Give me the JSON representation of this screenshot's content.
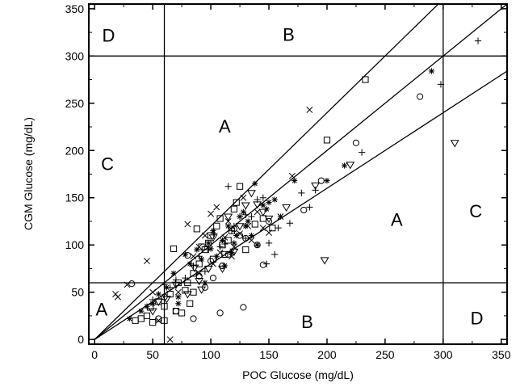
{
  "chart_data": {
    "type": "scatter",
    "title": "",
    "xlabel": "POC Glucose (mg/dL)",
    "ylabel": "CGM Glucose (mg/dL)",
    "xlim": [
      -5,
      355
    ],
    "ylim": [
      -5,
      355
    ],
    "x_ticks": [
      "0",
      "50",
      "100",
      "150",
      "200",
      "250",
      "300",
      "350"
    ],
    "y_ticks": [
      "0",
      "50",
      "100",
      "150",
      "200",
      "250",
      "300",
      "350"
    ],
    "grid": false,
    "legend": "none",
    "marker_color": "#000000",
    "reference_lines": {
      "vertical": [
        60,
        300
      ],
      "horizontal": [
        60,
        300
      ],
      "diagonals_from_origin_slopes": [
        1.2,
        1.0,
        0.8
      ]
    },
    "zone_labels": [
      {
        "text": "D",
        "x": 12,
        "y": 322
      },
      {
        "text": "B",
        "x": 167,
        "y": 323
      },
      {
        "text": "A",
        "x": 112,
        "y": 226
      },
      {
        "text": "C",
        "x": 11,
        "y": 186
      },
      {
        "text": "A",
        "x": 260,
        "y": 127
      },
      {
        "text": "C",
        "x": 328,
        "y": 136
      },
      {
        "text": "A",
        "x": 6,
        "y": 32
      },
      {
        "text": "B",
        "x": 183,
        "y": 19
      },
      {
        "text": "D",
        "x": 329,
        "y": 23
      }
    ],
    "series": [
      {
        "marker": "circle",
        "points": [
          [
            32,
            59
          ],
          [
            80,
            89
          ],
          [
            85,
            22
          ],
          [
            100,
            83
          ],
          [
            108,
            28
          ],
          [
            120,
            117
          ],
          [
            128,
            34
          ],
          [
            140,
            100
          ],
          [
            145,
            79
          ],
          [
            150,
            125
          ],
          [
            180,
            137
          ],
          [
            195,
            168
          ],
          [
            225,
            208
          ],
          [
            280,
            257
          ],
          [
            110,
            78
          ],
          [
            125,
            110
          ],
          [
            55,
            22
          ],
          [
            60,
            45
          ],
          [
            70,
            30
          ],
          [
            90,
            67
          ],
          [
            102,
            65
          ],
          [
            115,
            90
          ],
          [
            130,
            107
          ],
          [
            95,
            55
          ]
        ]
      },
      {
        "marker": "square",
        "points": [
          [
            35,
            20
          ],
          [
            40,
            22
          ],
          [
            45,
            25
          ],
          [
            48,
            34
          ],
          [
            50,
            18
          ],
          [
            55,
            40
          ],
          [
            60,
            35
          ],
          [
            65,
            48
          ],
          [
            70,
            30
          ],
          [
            75,
            28
          ],
          [
            78,
            52
          ],
          [
            80,
            60
          ],
          [
            82,
            38
          ],
          [
            85,
            70
          ],
          [
            88,
            117
          ],
          [
            90,
            80
          ],
          [
            92,
            98
          ],
          [
            95,
            95
          ],
          [
            98,
            102
          ],
          [
            100,
            110
          ],
          [
            102,
            85
          ],
          [
            105,
            120
          ],
          [
            108,
            128
          ],
          [
            110,
            100
          ],
          [
            112,
            90
          ],
          [
            115,
            105
          ],
          [
            118,
            115
          ],
          [
            120,
            138
          ],
          [
            122,
            145
          ],
          [
            125,
            162
          ],
          [
            130,
            95
          ],
          [
            138,
            122
          ],
          [
            145,
            128
          ],
          [
            153,
            118
          ],
          [
            200,
            211
          ],
          [
            233,
            275
          ],
          [
            68,
            96
          ],
          [
            72,
            60
          ],
          [
            85,
            50
          ],
          [
            60,
            20
          ]
        ]
      },
      {
        "marker": "plus",
        "points": [
          [
            50,
            42
          ],
          [
            60,
            58
          ],
          [
            65,
            55
          ],
          [
            70,
            63
          ],
          [
            78,
            65
          ],
          [
            85,
            78
          ],
          [
            90,
            88
          ],
          [
            95,
            72
          ],
          [
            98,
            95
          ],
          [
            103,
            112
          ],
          [
            108,
            98
          ],
          [
            112,
            101
          ],
          [
            118,
            115
          ],
          [
            120,
            120
          ],
          [
            125,
            130
          ],
          [
            130,
            132
          ],
          [
            135,
            130
          ],
          [
            140,
            148
          ],
          [
            145,
            150
          ],
          [
            148,
            80
          ],
          [
            150,
            102
          ],
          [
            155,
            90
          ],
          [
            158,
            118
          ],
          [
            168,
            123
          ],
          [
            178,
            155
          ],
          [
            185,
            140
          ],
          [
            190,
            158
          ],
          [
            230,
            198
          ],
          [
            298,
            270
          ],
          [
            330,
            316
          ],
          [
            115,
            162
          ],
          [
            130,
            107
          ]
        ]
      },
      {
        "marker": "cross",
        "points": [
          [
            18,
            48
          ],
          [
            20,
            45
          ],
          [
            28,
            58
          ],
          [
            45,
            83
          ],
          [
            50,
            50
          ],
          [
            55,
            20
          ],
          [
            65,
            0
          ],
          [
            72,
            50
          ],
          [
            80,
            122
          ],
          [
            85,
            88
          ],
          [
            90,
            70
          ],
          [
            95,
            110
          ],
          [
            100,
            133
          ],
          [
            102,
            80
          ],
          [
            105,
            140
          ],
          [
            108,
            92
          ],
          [
            112,
            108
          ],
          [
            115,
            125
          ],
          [
            118,
            88
          ],
          [
            120,
            98
          ],
          [
            125,
            112
          ],
          [
            128,
            150
          ],
          [
            132,
            120
          ],
          [
            135,
            105
          ],
          [
            140,
            135
          ],
          [
            145,
            118
          ],
          [
            150,
            113
          ],
          [
            160,
            130
          ],
          [
            170,
            173
          ],
          [
            185,
            243
          ],
          [
            90,
            98
          ]
        ]
      },
      {
        "marker": "star",
        "points": [
          [
            30,
            22
          ],
          [
            40,
            30
          ],
          [
            45,
            35
          ],
          [
            50,
            38
          ],
          [
            55,
            48
          ],
          [
            62,
            55
          ],
          [
            68,
            70
          ],
          [
            72,
            45
          ],
          [
            78,
            90
          ],
          [
            82,
            80
          ],
          [
            88,
            95
          ],
          [
            92,
            85
          ],
          [
            95,
            60
          ],
          [
            98,
            102
          ],
          [
            100,
            96
          ],
          [
            102,
            115
          ],
          [
            105,
            88
          ],
          [
            110,
            105
          ],
          [
            112,
            78
          ],
          [
            115,
            120
          ],
          [
            118,
            92
          ],
          [
            120,
            102
          ],
          [
            122,
            110
          ],
          [
            125,
            130
          ],
          [
            128,
            135
          ],
          [
            130,
            120
          ],
          [
            132,
            125
          ],
          [
            135,
            110
          ],
          [
            138,
            165
          ],
          [
            140,
            100
          ],
          [
            145,
            142
          ],
          [
            148,
            138
          ],
          [
            150,
            145
          ],
          [
            155,
            148
          ],
          [
            160,
            130
          ],
          [
            172,
            168
          ],
          [
            200,
            168
          ],
          [
            215,
            184
          ],
          [
            290,
            284
          ],
          [
            72,
            38
          ]
        ]
      },
      {
        "marker": "triangle-down",
        "points": [
          [
            50,
            30
          ],
          [
            55,
            40
          ],
          [
            62,
            43
          ],
          [
            70,
            58
          ],
          [
            80,
            48
          ],
          [
            86,
            76
          ],
          [
            90,
            62
          ],
          [
            92,
            53
          ],
          [
            98,
            75
          ],
          [
            102,
            108
          ],
          [
            110,
            75
          ],
          [
            115,
            130
          ],
          [
            120,
            93
          ],
          [
            125,
            120
          ],
          [
            130,
            142
          ],
          [
            135,
            155
          ],
          [
            140,
            143
          ],
          [
            145,
            135
          ],
          [
            150,
            128
          ],
          [
            165,
            140
          ],
          [
            190,
            163
          ],
          [
            198,
            84
          ],
          [
            220,
            185
          ],
          [
            310,
            208
          ]
        ]
      }
    ]
  }
}
